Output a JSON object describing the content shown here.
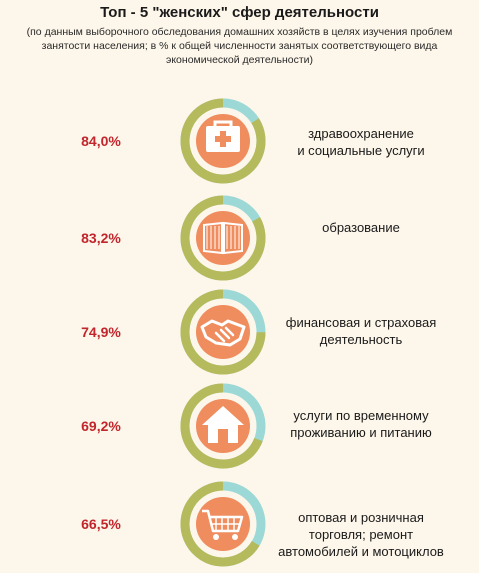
{
  "title": "Топ - 5 \"женских\" сфер деятельности",
  "subtitle": "(по данным выборочного обследования домашних хозяйств в целях изучения проблем занятости населения; в % к общей численности занятых соответствующего вида экономической деятельности)",
  "rows": [
    {
      "pct": "84,0%",
      "label_lines": [
        "здравоохранение",
        "и социальные услуги"
      ],
      "icon": "medical-kit-icon"
    },
    {
      "pct": "83,2%",
      "label_lines": [
        "образование"
      ],
      "icon": "open-book-icon"
    },
    {
      "pct": "74,9%",
      "label_lines": [
        "финансовая и страховая",
        "деятельность"
      ],
      "icon": "handshake-icon"
    },
    {
      "pct": "69,2%",
      "label_lines": [
        "услуги по временному",
        "проживанию и питанию"
      ],
      "icon": "house-icon"
    },
    {
      "pct": "66,5%",
      "label_lines": [
        "оптовая и розничная",
        "торговля; ремонт",
        "автомобилей и мотоциклов"
      ],
      "icon": "shopping-cart-icon"
    }
  ],
  "colors": {
    "ring_filled": "#b5ba5c",
    "ring_remaining": "#9cd9d6",
    "icon_bg": "#ef8d5f",
    "percent_text": "#c0262c",
    "background": "#fdf6ea"
  },
  "chart_data": {
    "type": "pie",
    "title": "Топ - 5 \"женских\" сфер деятельности",
    "unit": "%",
    "categories": [
      "здравоохранение и социальные услуги",
      "образование",
      "финансовая и страховая деятельность",
      "услуги по временному проживанию и питанию",
      "оптовая и розничная торговля; ремонт автомобилей и мотоциклов"
    ],
    "values": [
      84.0,
      83.2,
      74.9,
      69.2,
      66.5
    ]
  }
}
